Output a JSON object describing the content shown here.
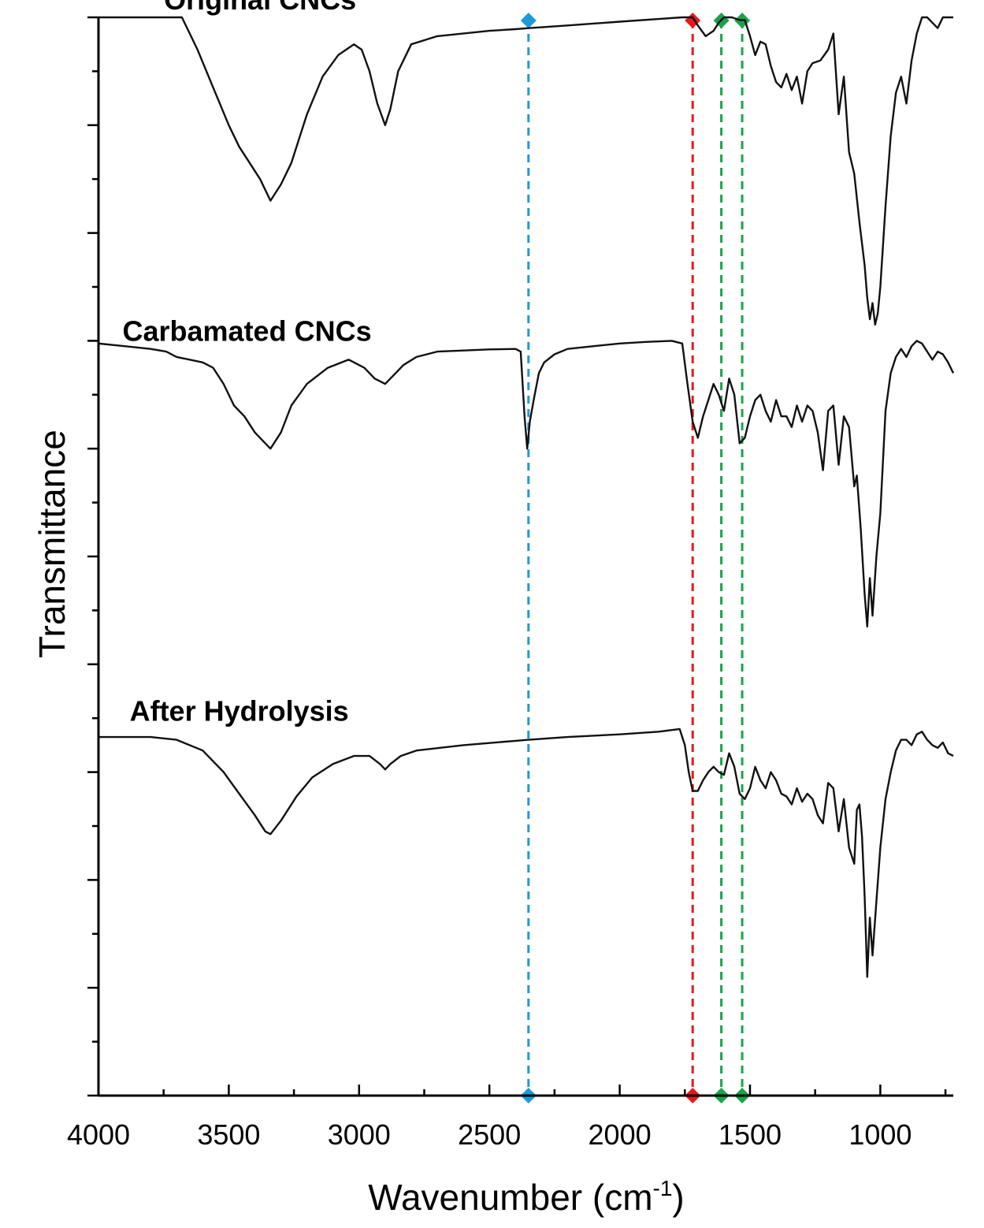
{
  "chart_data": {
    "type": "line",
    "title": "",
    "xlabel": "Wavenumber (cm",
    "xlabel_sup": "-1",
    "xlabel_end": ")",
    "ylabel": "Transmittance",
    "xlim": [
      4000,
      720
    ],
    "x_reversed": true,
    "x_ticks": [
      4000,
      3500,
      3000,
      2500,
      2000,
      1500,
      1000
    ],
    "x_tick_labels": [
      "4000",
      "3500",
      "3000",
      "2500",
      "2000",
      "1500",
      "1000"
    ],
    "ylim": [
      0,
      20
    ],
    "y_ticks_labeled": false,
    "grid": false,
    "legend": "none",
    "series": [
      {
        "name": "Original CNCs",
        "label": "Original CNCs",
        "label_x": 3380,
        "label_y": 20.15,
        "x": [
          4000,
          3800,
          3680,
          3620,
          3560,
          3500,
          3460,
          3420,
          3380,
          3340,
          3300,
          3260,
          3200,
          3140,
          3080,
          3020,
          2990,
          2960,
          2930,
          2900,
          2880,
          2850,
          2800,
          2700,
          2500,
          2400,
          2350,
          2200,
          2000,
          1850,
          1760,
          1720,
          1700,
          1670,
          1640,
          1620,
          1600,
          1570,
          1540,
          1520,
          1500,
          1480,
          1460,
          1440,
          1420,
          1400,
          1380,
          1360,
          1340,
          1320,
          1300,
          1280,
          1260,
          1230,
          1200,
          1180,
          1160,
          1140,
          1120,
          1100,
          1080,
          1060,
          1050,
          1040,
          1030,
          1020,
          1010,
          1000,
          980,
          960,
          940,
          920,
          900,
          880,
          860,
          840,
          820,
          800,
          780,
          760,
          740,
          720
        ],
        "y": [
          20.0,
          20.0,
          20.0,
          19.4,
          18.7,
          18.0,
          17.6,
          17.3,
          17.0,
          16.6,
          16.9,
          17.3,
          18.2,
          18.9,
          19.3,
          19.5,
          19.4,
          19.0,
          18.4,
          18.0,
          18.3,
          19.0,
          19.5,
          19.65,
          19.75,
          19.78,
          19.8,
          19.85,
          19.92,
          19.97,
          20.0,
          20.0,
          19.85,
          19.65,
          19.75,
          19.9,
          20.0,
          20.0,
          19.95,
          19.95,
          19.65,
          19.3,
          19.55,
          19.5,
          19.1,
          18.8,
          18.7,
          18.95,
          18.65,
          18.9,
          18.4,
          19.0,
          19.15,
          19.2,
          19.4,
          19.7,
          18.2,
          18.9,
          17.5,
          17.1,
          16.2,
          15.4,
          14.8,
          14.4,
          14.7,
          14.3,
          14.5,
          15.0,
          16.5,
          17.8,
          18.6,
          18.9,
          18.4,
          19.2,
          19.7,
          20.0,
          20.0,
          19.9,
          19.8,
          20.0,
          20.0,
          20.0
        ]
      },
      {
        "name": "Carbamated CNCs",
        "label": "Carbamated CNCs",
        "label_x": 3430,
        "label_y": 14.0,
        "x": [
          4000,
          3900,
          3800,
          3740,
          3700,
          3650,
          3600,
          3560,
          3520,
          3480,
          3440,
          3400,
          3360,
          3340,
          3300,
          3260,
          3200,
          3120,
          3040,
          2980,
          2940,
          2900,
          2870,
          2830,
          2780,
          2700,
          2600,
          2500,
          2400,
          2380,
          2365,
          2355,
          2345,
          2330,
          2310,
          2290,
          2250,
          2200,
          2100,
          2000,
          1900,
          1800,
          1760,
          1740,
          1720,
          1700,
          1680,
          1660,
          1640,
          1620,
          1600,
          1580,
          1560,
          1540,
          1520,
          1500,
          1480,
          1460,
          1440,
          1420,
          1400,
          1380,
          1360,
          1340,
          1320,
          1300,
          1280,
          1260,
          1240,
          1220,
          1200,
          1180,
          1160,
          1140,
          1120,
          1100,
          1090,
          1075,
          1060,
          1050,
          1040,
          1030,
          1015,
          1000,
          980,
          960,
          940,
          920,
          900,
          880,
          860,
          840,
          820,
          800,
          780,
          760,
          740,
          720
        ],
        "y": [
          13.95,
          13.9,
          13.85,
          13.8,
          13.7,
          13.65,
          13.6,
          13.5,
          13.2,
          12.8,
          12.6,
          12.3,
          12.1,
          12.0,
          12.3,
          12.8,
          13.2,
          13.5,
          13.65,
          13.5,
          13.3,
          13.2,
          13.35,
          13.55,
          13.7,
          13.8,
          13.82,
          13.84,
          13.85,
          13.8,
          12.6,
          12.0,
          12.5,
          12.9,
          13.4,
          13.6,
          13.75,
          13.85,
          13.9,
          13.95,
          13.98,
          14.0,
          13.95,
          13.2,
          12.5,
          12.2,
          12.6,
          12.9,
          13.2,
          13.0,
          12.7,
          13.3,
          13.0,
          12.1,
          12.2,
          12.6,
          12.9,
          13.0,
          12.7,
          12.5,
          12.9,
          12.6,
          12.6,
          12.4,
          12.8,
          12.5,
          12.8,
          12.7,
          12.3,
          11.6,
          12.7,
          12.8,
          11.7,
          12.6,
          12.4,
          11.3,
          11.5,
          10.5,
          9.3,
          8.7,
          9.6,
          8.9,
          10.0,
          10.8,
          12.7,
          13.4,
          13.7,
          13.85,
          13.7,
          13.9,
          14.0,
          13.95,
          13.8,
          13.65,
          13.8,
          13.75,
          13.6,
          13.4
        ]
      },
      {
        "name": "After Hydrolysis",
        "label": "After Hydrolysis",
        "label_x": 3460,
        "label_y": 6.95,
        "x": [
          4000,
          3800,
          3700,
          3600,
          3520,
          3460,
          3400,
          3360,
          3340,
          3300,
          3240,
          3180,
          3100,
          3020,
          2960,
          2920,
          2900,
          2880,
          2840,
          2780,
          2600,
          2400,
          2350,
          2200,
          2000,
          1850,
          1770,
          1750,
          1735,
          1720,
          1700,
          1680,
          1660,
          1640,
          1620,
          1600,
          1580,
          1560,
          1540,
          1520,
          1500,
          1480,
          1460,
          1440,
          1420,
          1400,
          1380,
          1360,
          1340,
          1320,
          1300,
          1280,
          1260,
          1240,
          1220,
          1200,
          1180,
          1160,
          1140,
          1120,
          1100,
          1090,
          1080,
          1070,
          1060,
          1050,
          1040,
          1030,
          1015,
          1000,
          980,
          960,
          940,
          920,
          900,
          880,
          860,
          840,
          820,
          800,
          780,
          760,
          740,
          720
        ],
        "y": [
          6.65,
          6.65,
          6.6,
          6.4,
          6.0,
          5.6,
          5.2,
          4.9,
          4.85,
          5.1,
          5.55,
          5.9,
          6.15,
          6.3,
          6.3,
          6.15,
          6.05,
          6.15,
          6.3,
          6.4,
          6.5,
          6.58,
          6.6,
          6.65,
          6.7,
          6.75,
          6.8,
          6.5,
          6.0,
          5.65,
          5.65,
          5.85,
          6.0,
          6.1,
          6.0,
          5.95,
          6.35,
          6.1,
          5.6,
          5.5,
          5.7,
          6.1,
          5.85,
          5.7,
          6.0,
          5.85,
          5.6,
          5.55,
          5.4,
          5.7,
          5.45,
          5.6,
          5.5,
          5.2,
          5.05,
          5.8,
          5.7,
          4.9,
          5.5,
          4.6,
          4.3,
          5.3,
          5.4,
          4.8,
          3.7,
          2.2,
          3.3,
          2.6,
          3.6,
          4.6,
          5.5,
          6.0,
          6.4,
          6.6,
          6.6,
          6.5,
          6.7,
          6.75,
          6.6,
          6.5,
          6.45,
          6.55,
          6.35,
          6.3
        ]
      }
    ],
    "markers": [
      {
        "x": 2350,
        "color": "#1e9ad6"
      },
      {
        "x": 1720,
        "color": "#e8191c"
      },
      {
        "x": 1610,
        "color": "#1aa34a"
      },
      {
        "x": 1530,
        "color": "#1aa34a"
      }
    ]
  }
}
